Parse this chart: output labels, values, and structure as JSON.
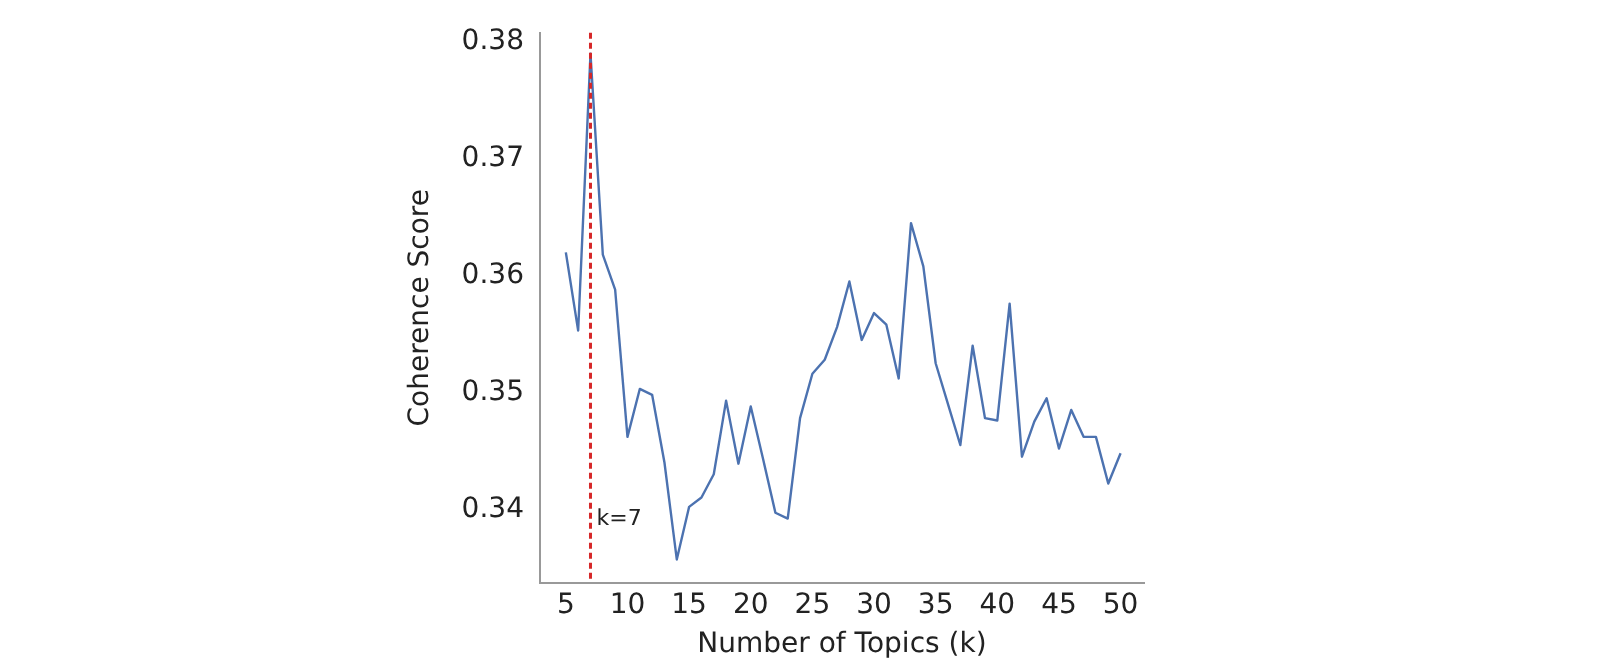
{
  "chart_data": {
    "type": "line",
    "xlabel": "Number of Topics (k)",
    "ylabel": "Coherence Score",
    "x": [
      5,
      6,
      7,
      8,
      9,
      10,
      11,
      12,
      13,
      14,
      15,
      16,
      17,
      18,
      19,
      20,
      21,
      22,
      23,
      24,
      25,
      26,
      27,
      28,
      29,
      30,
      31,
      32,
      33,
      34,
      35,
      36,
      37,
      38,
      39,
      40,
      41,
      42,
      43,
      44,
      45,
      46,
      47,
      48,
      49,
      50
    ],
    "series": [
      {
        "color": "#4c72b0",
        "values": [
          0.362,
          0.3553,
          0.379,
          0.3618,
          0.3588,
          0.3462,
          0.3503,
          0.3498,
          0.344,
          0.3357,
          0.3402,
          0.341,
          0.343,
          0.3493,
          0.3439,
          0.3488,
          0.3443,
          0.3397,
          0.3392,
          0.3478,
          0.3516,
          0.3528,
          0.3556,
          0.3595,
          0.3545,
          0.3568,
          0.3558,
          0.3512,
          0.3645,
          0.3608,
          0.3525,
          0.349,
          0.3455,
          0.354,
          0.3478,
          0.3476,
          0.3576,
          0.3445,
          0.3475,
          0.3495,
          0.3452,
          0.3485,
          0.3462,
          0.3462,
          0.3422,
          0.3448
        ]
      }
    ],
    "xlim": [
      2.9,
      51.9
    ],
    "xticks": [
      5,
      10,
      15,
      20,
      25,
      30,
      35,
      40,
      45,
      50
    ],
    "ylim": [
      0.3337,
      0.3808
    ],
    "yticks": [
      0.34,
      0.35,
      0.36,
      0.37,
      0.38
    ],
    "ref_lines": [
      {
        "axis": "x",
        "value": 7,
        "label": "k=7",
        "color": "#d62728",
        "line_style": "dashed"
      }
    ],
    "grid": false,
    "legend": false,
    "marker": "none",
    "line_style": "solid"
  }
}
